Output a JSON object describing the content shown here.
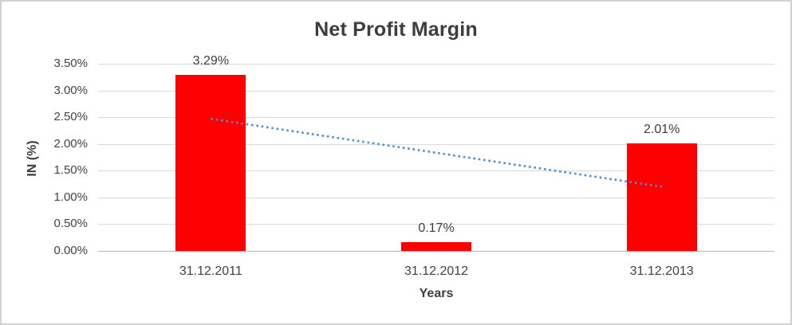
{
  "chart_data": {
    "type": "bar",
    "title": "Net Profit Margin",
    "xlabel": "Years",
    "ylabel": "IN (%)",
    "categories": [
      "31.12.2011",
      "31.12.2012",
      "31.12.2013"
    ],
    "values": [
      3.29,
      0.17,
      2.01
    ],
    "value_labels": [
      "3.29%",
      "0.17%",
      "2.01%"
    ],
    "ylim": [
      0,
      3.5
    ],
    "ytick_step": 0.5,
    "ytick_labels": [
      "0.00%",
      "0.50%",
      "1.00%",
      "1.50%",
      "2.00%",
      "2.50%",
      "3.00%",
      "3.50%"
    ],
    "grid": true,
    "legend_position": "none",
    "bar_color": "#ff0000",
    "trendline": {
      "type": "linear",
      "style": "dotted",
      "color": "#4d8fcc",
      "start_value": 2.47,
      "end_value": 1.2
    },
    "colors": {
      "gridline": "#d9d9d9",
      "axis_line": "#b5b5b5",
      "title_text": "#3d3d3d",
      "tick_text": "#424242",
      "frame_border": "#d2d2d2",
      "background": "#ffffff"
    }
  }
}
